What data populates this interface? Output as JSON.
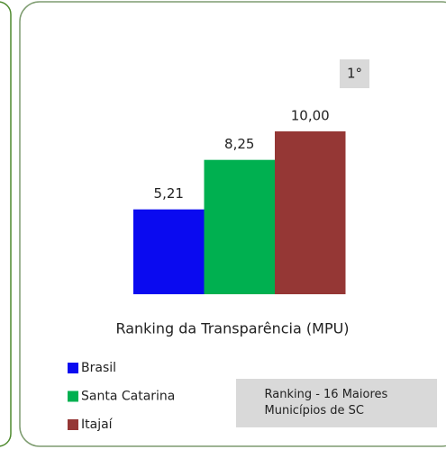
{
  "chart_data": {
    "type": "bar",
    "title": "Ranking da Transparência (MPU)",
    "categories": [
      "Brasil",
      "Santa Catarina",
      "Itajaí"
    ],
    "values": [
      5.21,
      8.25,
      10
    ],
    "value_labels": [
      "5,21",
      "8,25",
      "10,00"
    ],
    "colors": [
      "#0a0af0",
      "#00b050",
      "#953735"
    ],
    "ylim": [
      0,
      10
    ],
    "badge": "1°",
    "annotation": "Ranking - 16 Maiores Municípios de SC",
    "legend": "bottom-left"
  }
}
